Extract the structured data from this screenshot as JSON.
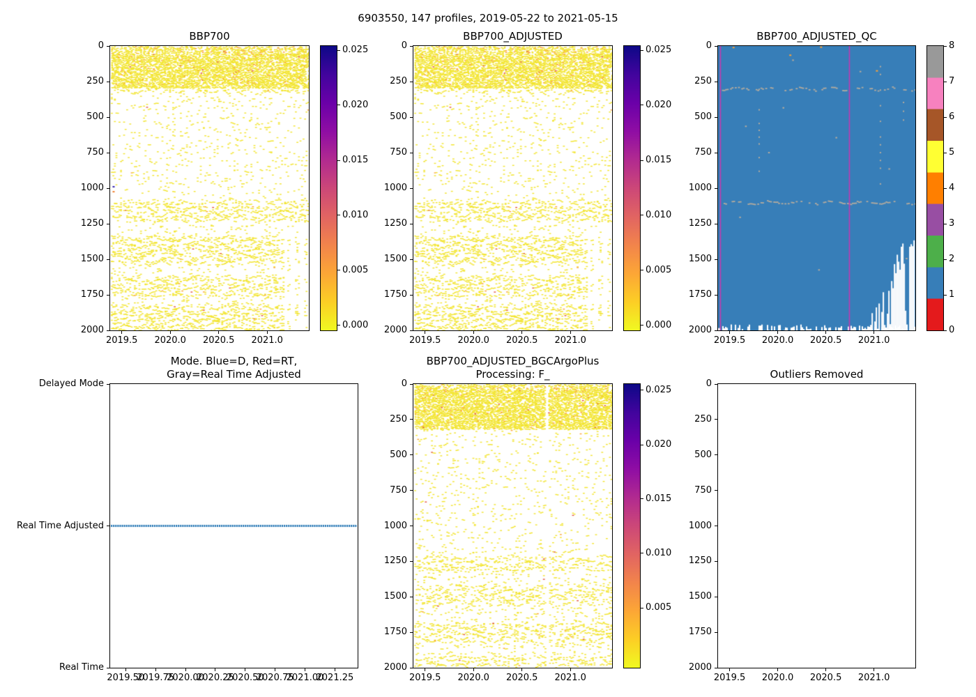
{
  "figure": {
    "suptitle": "6903550, 147 profiles, 2019-05-22 to 2021-05-15"
  },
  "colors": {
    "scatter_yellow": "#f2e42c",
    "scatter_orange": "#fba238",
    "scatter_red": "#e0523f",
    "qc_blue": "#377eb8",
    "qc_gray": "#b3ab9f",
    "magenta": "#c23ab0",
    "mode_blue": "#2878b5",
    "white": "#ffffff",
    "black": "#000000"
  },
  "colorbars": {
    "cb1": {
      "kind": "gradient",
      "stops": [
        "#0d0887",
        "#41049d",
        "#6a00a8",
        "#8f0da4",
        "#b12a90",
        "#cc4778",
        "#e16462",
        "#f2844b",
        "#fca636",
        "#fcce25",
        "#f0f921"
      ],
      "ticks": [
        {
          "label": "0.025",
          "f": 0.015
        },
        {
          "label": "0.020",
          "f": 0.208
        },
        {
          "label": "0.015",
          "f": 0.402
        },
        {
          "label": "0.010",
          "f": 0.595
        },
        {
          "label": "0.005",
          "f": 0.789
        },
        {
          "label": "0.000",
          "f": 0.982
        }
      ]
    },
    "cb2": {
      "kind": "gradient",
      "stops": [
        "#0d0887",
        "#41049d",
        "#6a00a8",
        "#8f0da4",
        "#b12a90",
        "#cc4778",
        "#e16462",
        "#f2844b",
        "#fca636",
        "#fcce25",
        "#f0f921"
      ],
      "ticks": [
        {
          "label": "0.025",
          "f": 0.015
        },
        {
          "label": "0.020",
          "f": 0.208
        },
        {
          "label": "0.015",
          "f": 0.402
        },
        {
          "label": "0.010",
          "f": 0.595
        },
        {
          "label": "0.005",
          "f": 0.789
        },
        {
          "label": "0.000",
          "f": 0.982
        }
      ]
    },
    "cb3": {
      "kind": "discrete",
      "colors_top_to_bottom": [
        "#999999",
        "#f781bf",
        "#a65628",
        "#ffff33",
        "#ff7f00",
        "#984ea3",
        "#4daf4a",
        "#377eb8",
        "#e41a1c"
      ],
      "ticks": [
        {
          "label": "8",
          "f": 0
        },
        {
          "label": "7",
          "f": 0.125
        },
        {
          "label": "6",
          "f": 0.25
        },
        {
          "label": "5",
          "f": 0.375
        },
        {
          "label": "4",
          "f": 0.5
        },
        {
          "label": "3",
          "f": 0.625
        },
        {
          "label": "2",
          "f": 0.75
        },
        {
          "label": "1",
          "f": 0.875
        },
        {
          "label": "0",
          "f": 1
        }
      ]
    },
    "cb5": {
      "kind": "gradient",
      "stops": [
        "#0d0887",
        "#41049d",
        "#6a00a8",
        "#8f0da4",
        "#b12a90",
        "#cc4778",
        "#e16462",
        "#f2844b",
        "#fca636",
        "#fcce25",
        "#f0f921"
      ],
      "ticks": [
        {
          "label": "0.025",
          "f": 0.022
        },
        {
          "label": "0.020",
          "f": 0.214
        },
        {
          "label": "0.015",
          "f": 0.405
        },
        {
          "label": "0.010",
          "f": 0.597
        },
        {
          "label": "0.005",
          "f": 0.789
        }
      ]
    }
  },
  "chart_data": [
    {
      "id": "p1",
      "type": "heatmap",
      "render": "profile-scatter",
      "seed": 101,
      "title_lines": [
        "BBP700"
      ],
      "xlim": [
        2019.38,
        2021.43
      ],
      "ylim": [
        0,
        2000
      ],
      "xticks": [
        {
          "v": 2019.5,
          "label": "2019.5"
        },
        {
          "v": 2020.0,
          "label": "2020.0"
        },
        {
          "v": 2020.5,
          "label": "2020.5"
        },
        {
          "v": 2021.0,
          "label": "2021.0"
        }
      ],
      "yticks": [
        {
          "v": 0,
          "label": "0"
        },
        {
          "v": 250,
          "label": "250"
        },
        {
          "v": 500,
          "label": "500"
        },
        {
          "v": 750,
          "label": "750"
        },
        {
          "v": 1000,
          "label": "1000"
        },
        {
          "v": 1250,
          "label": "1250"
        },
        {
          "v": 1500,
          "label": "1500"
        },
        {
          "v": 1750,
          "label": "1750"
        },
        {
          "v": 2000,
          "label": "2000"
        }
      ],
      "value_range": [
        0.0,
        0.026
      ],
      "colorbar": "cb1",
      "content": {
        "bands": [
          {
            "d0": 0,
            "d1": 55,
            "density": 0.5,
            "style": "speckle",
            "warm": 0.09
          },
          {
            "d0": 55,
            "d1": 295,
            "density": 0.66,
            "style": "speckle",
            "warm": 0.035
          },
          {
            "d0": 295,
            "d1": 335,
            "density": 0.3,
            "style": "wavy",
            "spacing": 12,
            "warm": 0.01
          },
          {
            "d0": 335,
            "d1": 1090,
            "density": 0.12,
            "style": "wavy",
            "spacing": 20,
            "warm": 0.008
          },
          {
            "d0": 1090,
            "d1": 1230,
            "density": 0.38,
            "style": "wavy",
            "spacing": 13,
            "warm": 0.006
          },
          {
            "d0": 1230,
            "d1": 1340,
            "density": 0.15,
            "style": "wavy",
            "spacing": 17,
            "warm": 0.004
          },
          {
            "d0": 1340,
            "d1": 1530,
            "density": 0.4,
            "style": "wavy",
            "spacing": 13,
            "warm": 0.004
          },
          {
            "d0": 1530,
            "d1": 1620,
            "density": 0.16,
            "style": "wavy",
            "spacing": 17,
            "warm": 0.004
          },
          {
            "d0": 1620,
            "d1": 1760,
            "density": 0.38,
            "style": "wavy",
            "spacing": 13,
            "warm": 0.004
          },
          {
            "d0": 1760,
            "d1": 1825,
            "density": 0.15,
            "style": "wavy",
            "spacing": 17,
            "warm": 0.004
          },
          {
            "d0": 1825,
            "d1": 2000,
            "density": 0.42,
            "style": "wavy",
            "spacing": 12,
            "warm": 0.004
          }
        ],
        "sparse_right_from": 2021.17,
        "special_dots": [
          [
            2019.405,
            985,
            "#3322aa"
          ],
          [
            2019.405,
            1020,
            "#f08030"
          ]
        ]
      }
    },
    {
      "id": "p2",
      "type": "heatmap",
      "render": "profile-scatter",
      "seed": 101,
      "title_lines": [
        "BBP700_ADJUSTED"
      ],
      "xlim": [
        2019.38,
        2021.43
      ],
      "ylim": [
        0,
        2000
      ],
      "xticks": [
        {
          "v": 2019.5,
          "label": "2019.5"
        },
        {
          "v": 2020.0,
          "label": "2020.0"
        },
        {
          "v": 2020.5,
          "label": "2020.5"
        },
        {
          "v": 2021.0,
          "label": "2021.0"
        }
      ],
      "yticks": [
        {
          "v": 0,
          "label": "0"
        },
        {
          "v": 250,
          "label": "250"
        },
        {
          "v": 500,
          "label": "500"
        },
        {
          "v": 750,
          "label": "750"
        },
        {
          "v": 1000,
          "label": "1000"
        },
        {
          "v": 1250,
          "label": "1250"
        },
        {
          "v": 1500,
          "label": "1500"
        },
        {
          "v": 1750,
          "label": "1750"
        },
        {
          "v": 2000,
          "label": "2000"
        }
      ],
      "value_range": [
        0.0,
        0.026
      ],
      "colorbar": "cb2",
      "content": {
        "bands": [
          {
            "d0": 0,
            "d1": 55,
            "density": 0.5,
            "style": "speckle",
            "warm": 0.09
          },
          {
            "d0": 55,
            "d1": 295,
            "density": 0.66,
            "style": "speckle",
            "warm": 0.035
          },
          {
            "d0": 295,
            "d1": 335,
            "density": 0.3,
            "style": "wavy",
            "spacing": 12,
            "warm": 0.01
          },
          {
            "d0": 335,
            "d1": 1090,
            "density": 0.12,
            "style": "wavy",
            "spacing": 20,
            "warm": 0.008
          },
          {
            "d0": 1090,
            "d1": 1230,
            "density": 0.38,
            "style": "wavy",
            "spacing": 13,
            "warm": 0.006
          },
          {
            "d0": 1230,
            "d1": 1340,
            "density": 0.15,
            "style": "wavy",
            "spacing": 17,
            "warm": 0.004
          },
          {
            "d0": 1340,
            "d1": 1530,
            "density": 0.4,
            "style": "wavy",
            "spacing": 13,
            "warm": 0.004
          },
          {
            "d0": 1530,
            "d1": 1620,
            "density": 0.16,
            "style": "wavy",
            "spacing": 17,
            "warm": 0.004
          },
          {
            "d0": 1620,
            "d1": 1760,
            "density": 0.38,
            "style": "wavy",
            "spacing": 13,
            "warm": 0.004
          },
          {
            "d0": 1760,
            "d1": 1825,
            "density": 0.15,
            "style": "wavy",
            "spacing": 17,
            "warm": 0.004
          },
          {
            "d0": 1825,
            "d1": 2000,
            "density": 0.42,
            "style": "wavy",
            "spacing": 12,
            "warm": 0.004
          }
        ],
        "sparse_right_from": 2021.17,
        "special_dots": []
      }
    },
    {
      "id": "p3",
      "type": "heatmap",
      "render": "qc-mesh",
      "seed": 303,
      "title_lines": [
        "BBP700_ADJUSTED_QC"
      ],
      "xlim": [
        2019.38,
        2021.43
      ],
      "ylim": [
        0,
        2000
      ],
      "xticks": [
        {
          "v": 2019.5,
          "label": "2019.5"
        },
        {
          "v": 2020.0,
          "label": "2020.0"
        },
        {
          "v": 2020.5,
          "label": "2020.5"
        },
        {
          "v": 2021.0,
          "label": "2021.0"
        }
      ],
      "yticks": [
        {
          "v": 0,
          "label": "0"
        },
        {
          "v": 250,
          "label": "250"
        },
        {
          "v": 500,
          "label": "500"
        },
        {
          "v": 750,
          "label": "750"
        },
        {
          "v": 1000,
          "label": "1000"
        },
        {
          "v": 1250,
          "label": "1250"
        },
        {
          "v": 1500,
          "label": "1500"
        },
        {
          "v": 1750,
          "label": "1750"
        },
        {
          "v": 2000,
          "label": "2000"
        }
      ],
      "value_range": [
        0,
        8
      ],
      "dominant_qc_flag": 1,
      "colorbar": "cb3",
      "content": {
        "gray_bands": [
          {
            "depth": 298,
            "jitter": 5,
            "density": 0.5
          },
          {
            "depth": 1098,
            "jitter": 4,
            "density": 0.55
          }
        ],
        "gray_columns": [
          {
            "year": 2019.8,
            "d0": 300,
            "d1": 880,
            "step": 48
          },
          {
            "year": 2021.06,
            "d0": 140,
            "d1": 1060,
            "step": 55
          },
          {
            "year": 2020.28,
            "d0": 150,
            "d1": 215,
            "step": 40
          },
          {
            "year": 2021.3,
            "d0": 330,
            "d1": 560,
            "step": 62
          }
        ],
        "gray_dots": [
          [
            2019.66,
            560
          ],
          [
            2019.9,
            745
          ],
          [
            2020.42,
            1570
          ],
          [
            2020.15,
            95
          ],
          [
            2020.85,
            175
          ],
          [
            2021.33,
            1490
          ],
          [
            2019.6,
            1200
          ],
          [
            2020.6,
            640
          ],
          [
            2020.05,
            430
          ],
          [
            2021.15,
            860
          ]
        ],
        "warm_dots": [
          [
            2020.44,
            3
          ],
          [
            2020.12,
            60
          ],
          [
            2019.53,
            6
          ],
          [
            2021.02,
            170
          ]
        ],
        "vline_years": [
          2019.405,
          2020.745
        ],
        "bottom_fringe": {
          "max_rise_m": 42,
          "density": 0.55
        },
        "white_region": {
          "start_year": 2020.96,
          "top_start_m": 1950,
          "top_end_m": 1280,
          "noise_m": 180,
          "blue_prob_start": 0.5,
          "blue_prob_end": 0.15
        }
      }
    },
    {
      "id": "p4",
      "type": "line",
      "render": "mode-line",
      "seed": 404,
      "title_lines": [
        "Mode. Blue=D, Red=RT,",
        "Gray=Real Time Adjusted"
      ],
      "xlim": [
        2019.37,
        2021.44
      ],
      "ylim": [
        0,
        1
      ],
      "xticks": [
        {
          "v": 2019.5,
          "label": "2019.50"
        },
        {
          "v": 2019.75,
          "label": "2019.75"
        },
        {
          "v": 2020.0,
          "label": "2020.00"
        },
        {
          "v": 2020.25,
          "label": "2020.25"
        },
        {
          "v": 2020.5,
          "label": "2020.50"
        },
        {
          "v": 2020.75,
          "label": "2020.75"
        },
        {
          "v": 2021.0,
          "label": "2021.00"
        },
        {
          "v": 2021.25,
          "label": "2021.25"
        }
      ],
      "yticks_f": [
        {
          "f": 0,
          "label": "Delayed Mode"
        },
        {
          "f": 0.5,
          "label": "Real Time Adjusted"
        },
        {
          "f": 1,
          "label": "Real Time"
        }
      ],
      "content": {
        "line_f": 0.5,
        "mode_of_all_profiles": "Real Time Adjusted"
      }
    },
    {
      "id": "p5",
      "type": "heatmap",
      "render": "profile-scatter",
      "seed": 505,
      "title_lines": [
        "BBP700_ADJUSTED_BGCArgoPlus",
        "Processing: F_"
      ],
      "xlim": [
        2019.38,
        2021.43
      ],
      "ylim": [
        0,
        2000
      ],
      "xticks": [
        {
          "v": 2019.5,
          "label": "2019.5"
        },
        {
          "v": 2020.0,
          "label": "2020.0"
        },
        {
          "v": 2020.5,
          "label": "2020.5"
        },
        {
          "v": 2021.0,
          "label": "2021.0"
        }
      ],
      "yticks": [
        {
          "v": 0,
          "label": "0"
        },
        {
          "v": 250,
          "label": "250"
        },
        {
          "v": 500,
          "label": "500"
        },
        {
          "v": 750,
          "label": "750"
        },
        {
          "v": 1000,
          "label": "1000"
        },
        {
          "v": 1250,
          "label": "1250"
        },
        {
          "v": 1500,
          "label": "1500"
        },
        {
          "v": 1750,
          "label": "1750"
        },
        {
          "v": 2000,
          "label": "2000"
        }
      ],
      "value_range": [
        0.0,
        0.026
      ],
      "colorbar": "cb5",
      "content": {
        "bands": [
          {
            "d0": 0,
            "d1": 45,
            "density": 0.55,
            "style": "speckle",
            "warm": 0.09
          },
          {
            "d0": 45,
            "d1": 310,
            "density": 0.68,
            "style": "speckle",
            "warm": 0.03
          },
          {
            "d0": 310,
            "d1": 1220,
            "density": 0.12,
            "style": "wavy",
            "spacing": 20,
            "warm": 0.008
          },
          {
            "d0": 1220,
            "d1": 1330,
            "density": 0.36,
            "style": "wavy",
            "spacing": 13,
            "warm": 0.005
          },
          {
            "d0": 1330,
            "d1": 1430,
            "density": 0.15,
            "style": "wavy",
            "spacing": 17,
            "warm": 0.004
          },
          {
            "d0": 1430,
            "d1": 1560,
            "density": 0.38,
            "style": "wavy",
            "spacing": 13,
            "warm": 0.004
          },
          {
            "d0": 1560,
            "d1": 1690,
            "density": 0.16,
            "style": "wavy",
            "spacing": 17,
            "warm": 0.004
          },
          {
            "d0": 1690,
            "d1": 1820,
            "density": 0.38,
            "style": "wavy",
            "spacing": 13,
            "warm": 0.004
          },
          {
            "d0": 1820,
            "d1": 1920,
            "density": 0.16,
            "style": "wavy",
            "spacing": 17,
            "warm": 0.004
          },
          {
            "d0": 1920,
            "d1": 2000,
            "density": 0.34,
            "style": "wavy",
            "spacing": 13,
            "warm": 0.004
          }
        ],
        "gap_years": [
          2020.75
        ],
        "special_dots": []
      }
    },
    {
      "id": "p6",
      "type": "scatter",
      "render": "empty",
      "seed": 606,
      "title_lines": [
        "Outliers Removed"
      ],
      "xlim": [
        2019.38,
        2021.43
      ],
      "ylim": [
        0,
        2000
      ],
      "xticks": [
        {
          "v": 2019.5,
          "label": "2019.5"
        },
        {
          "v": 2020.0,
          "label": "2020.0"
        },
        {
          "v": 2020.5,
          "label": "2020.5"
        },
        {
          "v": 2021.0,
          "label": "2021.0"
        }
      ],
      "yticks": [
        {
          "v": 0,
          "label": "0"
        },
        {
          "v": 250,
          "label": "250"
        },
        {
          "v": 500,
          "label": "500"
        },
        {
          "v": 750,
          "label": "750"
        },
        {
          "v": 1000,
          "label": "1000"
        },
        {
          "v": 1250,
          "label": "1250"
        },
        {
          "v": 1500,
          "label": "1500"
        },
        {
          "v": 1750,
          "label": "1750"
        },
        {
          "v": 2000,
          "label": "2000"
        }
      ],
      "content": {}
    }
  ]
}
